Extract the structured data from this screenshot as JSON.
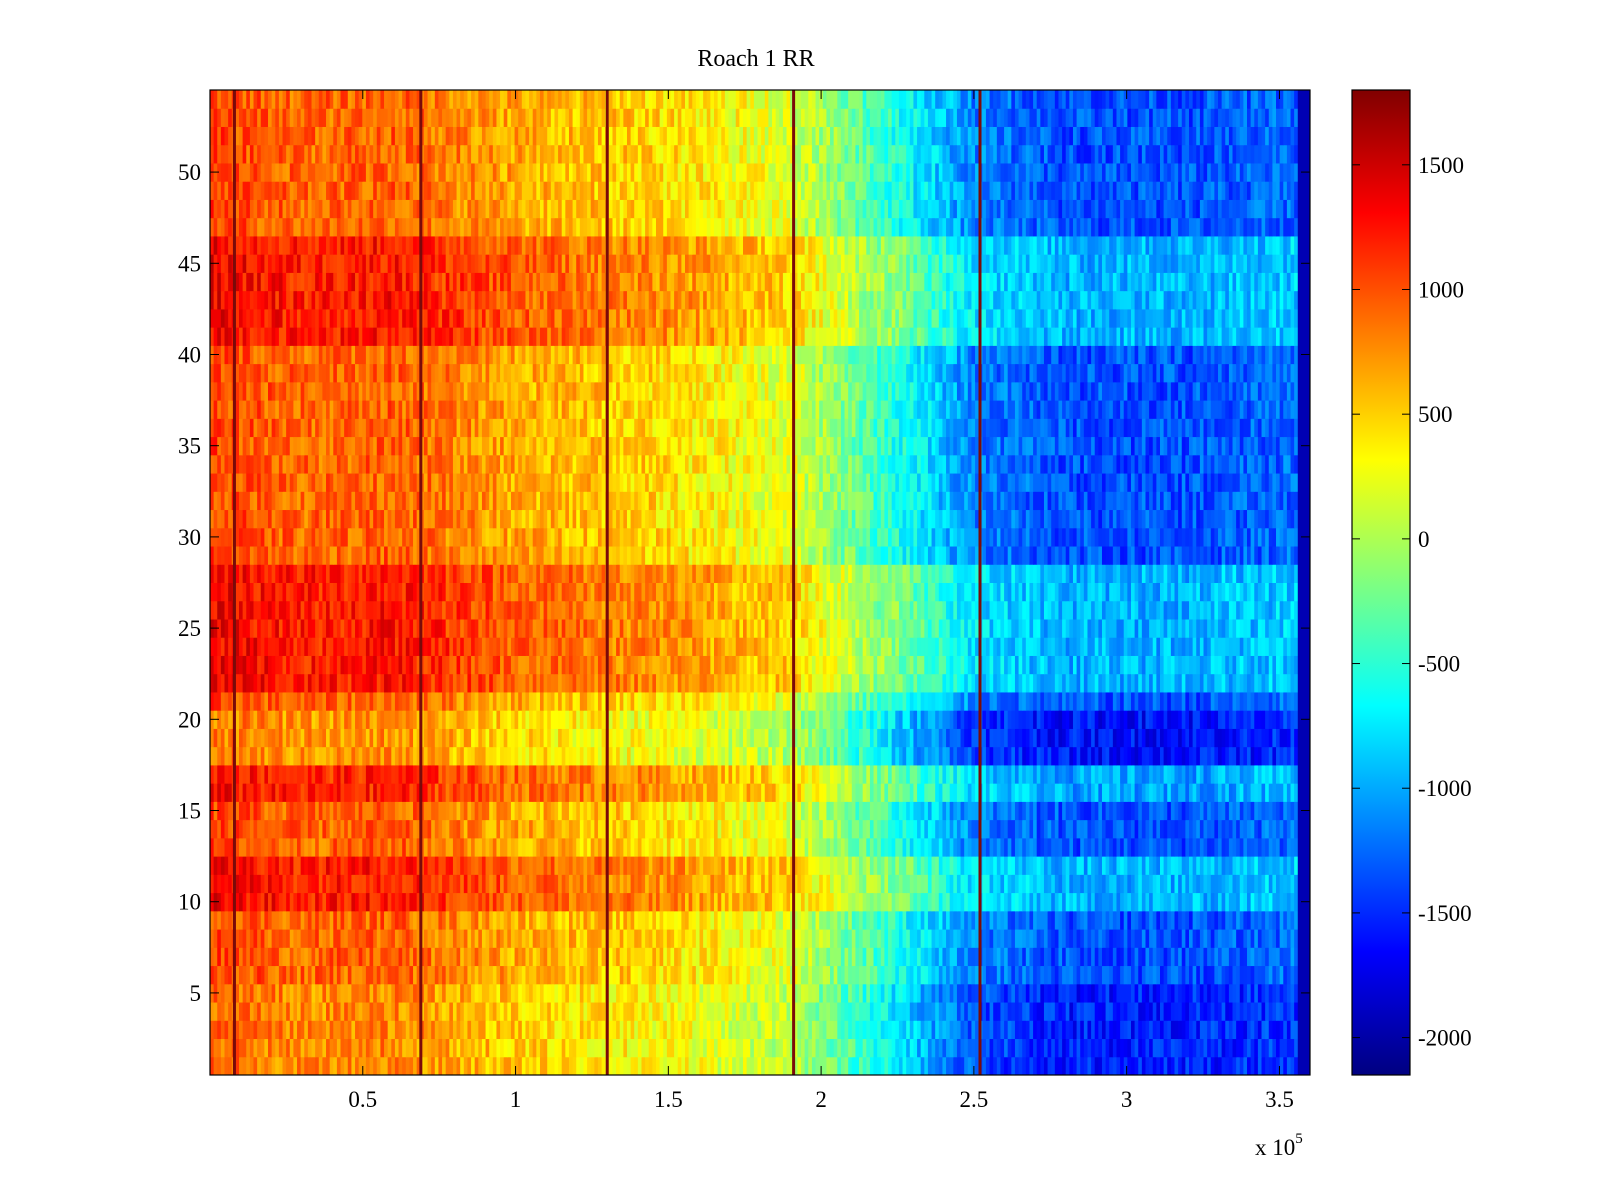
{
  "chart_data": {
    "type": "heatmap",
    "title": "Roach 1 RR",
    "xlabel": "",
    "ylabel": "",
    "x_multiplier_label": "x 10",
    "x_multiplier_exponent": "5",
    "xlim": [
      0,
      3.6
    ],
    "ylim": [
      0.5,
      54.5
    ],
    "x_ticks": [
      0.5,
      1,
      1.5,
      2,
      2.5,
      3,
      3.5
    ],
    "x_tick_labels": [
      "0.5",
      "1",
      "1.5",
      "2",
      "2.5",
      "3",
      "3.5"
    ],
    "y_ticks": [
      5,
      10,
      15,
      20,
      25,
      30,
      35,
      40,
      45,
      50
    ],
    "y_tick_labels": [
      "5",
      "10",
      "15",
      "20",
      "25",
      "30",
      "35",
      "40",
      "45",
      "50"
    ],
    "n_rows": 54,
    "colormap": "jet",
    "colorbar": {
      "range": [
        -2150,
        1800
      ],
      "ticks": [
        1500,
        1000,
        500,
        0,
        -500,
        -1000,
        -1500,
        -2000
      ],
      "tick_labels": [
        "1500",
        "1000",
        "500",
        "0",
        "-500",
        "-1000",
        "-1500",
        "-2000"
      ],
      "placement": "right"
    },
    "column_trend": {
      "x": [
        0,
        0.3,
        0.6,
        1.0,
        1.5,
        1.9,
        2.2,
        2.5,
        2.8,
        3.2,
        3.55
      ],
      "value": [
        1050,
        900,
        950,
        650,
        450,
        200,
        -450,
        -1150,
        -1350,
        -1350,
        -1250
      ]
    },
    "dark_stripes_x": [
      0.08,
      0.69,
      1.3,
      1.91,
      2.52
    ],
    "end_column": {
      "x": [
        3.56,
        3.6
      ],
      "value": -1950
    },
    "row_bands": [
      {
        "rows": [
          41,
          46
        ],
        "shift": 300
      },
      {
        "rows": [
          22,
          28
        ],
        "shift": 300
      },
      {
        "rows": [
          16,
          17
        ],
        "shift": 250
      },
      {
        "rows": [
          10,
          12
        ],
        "shift": 300
      },
      {
        "rows": [
          18,
          20
        ],
        "shift": -200
      },
      {
        "rows": [
          1,
          5
        ],
        "shift": -150
      }
    ]
  }
}
